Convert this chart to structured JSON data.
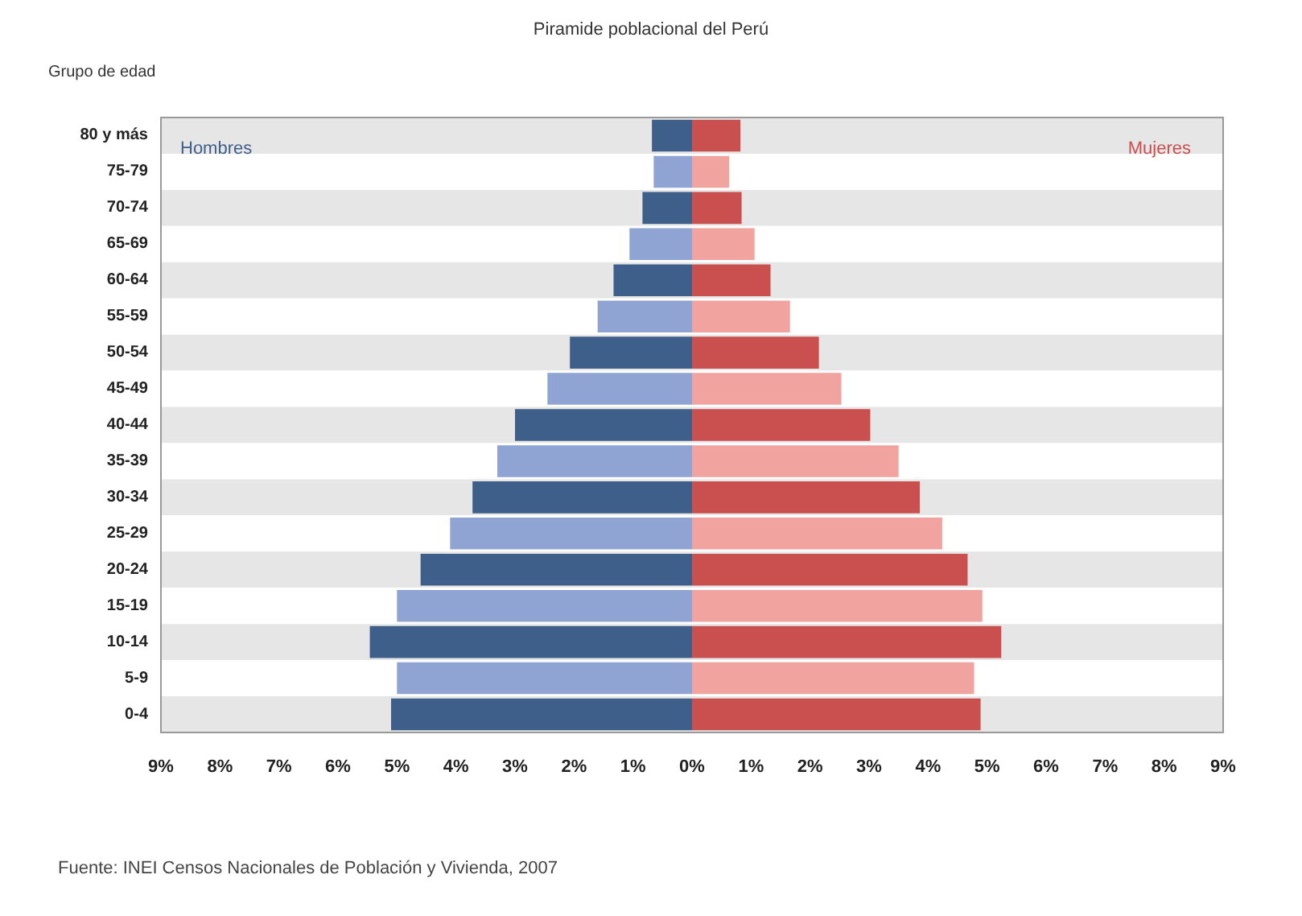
{
  "chart_data": {
    "type": "bar",
    "orientation": "horizontal",
    "stacked": true,
    "title": "Piramide poblacional del Perú",
    "ylabel": "Grupo de edad",
    "categories": [
      "80 y más",
      "75-79",
      "70-74",
      "65-69",
      "60-64",
      "55-59",
      "50-54",
      "45-49",
      "40-44",
      "35-39",
      "30-34",
      "25-29",
      "20-24",
      "15-19",
      "10-14",
      "5-9",
      "0-4"
    ],
    "series": [
      {
        "name": "Hombres",
        "values": [
          -0.68,
          -0.65,
          -0.84,
          -1.06,
          -1.33,
          -1.6,
          -2.07,
          -2.45,
          -3.0,
          -3.3,
          -3.72,
          -4.1,
          -4.6,
          -5.0,
          -5.46,
          -5.0,
          -5.1
        ],
        "colors": [
          "#3e5f8a",
          "#8fa4d3",
          "#3e5f8a",
          "#8fa4d3",
          "#3e5f8a",
          "#8fa4d3",
          "#3e5f8a",
          "#8fa4d3",
          "#3e5f8a",
          "#8fa4d3",
          "#3e5f8a",
          "#8fa4d3",
          "#3e5f8a",
          "#8fa4d3",
          "#3e5f8a",
          "#8fa4d3",
          "#3e5f8a"
        ]
      },
      {
        "name": "Mujeres",
        "values": [
          0.82,
          0.63,
          0.84,
          1.06,
          1.33,
          1.66,
          2.15,
          2.53,
          3.02,
          3.5,
          3.86,
          4.24,
          4.67,
          4.92,
          5.24,
          4.78,
          4.89
        ],
        "colors": [
          "#c9504f",
          "#f1a3a0",
          "#c9504f",
          "#f1a3a0",
          "#c9504f",
          "#f1a3a0",
          "#c9504f",
          "#f1a3a0",
          "#c9504f",
          "#f1a3a0",
          "#c9504f",
          "#f1a3a0",
          "#c9504f",
          "#f1a3a0",
          "#c9504f",
          "#f1a3a0",
          "#c9504f"
        ]
      }
    ],
    "xlim": [
      -9,
      9
    ],
    "xticks": [
      {
        "value": -9,
        "label": "9%"
      },
      {
        "value": -8,
        "label": "8%"
      },
      {
        "value": -7,
        "label": "7%"
      },
      {
        "value": -6,
        "label": "6%"
      },
      {
        "value": -5,
        "label": "5%"
      },
      {
        "value": -4,
        "label": "4%"
      },
      {
        "value": -3,
        "label": "3%"
      },
      {
        "value": -2,
        "label": "2%"
      },
      {
        "value": -1,
        "label": "1%"
      },
      {
        "value": 0,
        "label": "0%"
      },
      {
        "value": 1,
        "label": "1%"
      },
      {
        "value": 2,
        "label": "2%"
      },
      {
        "value": 3,
        "label": "3%"
      },
      {
        "value": 4,
        "label": "4%"
      },
      {
        "value": 5,
        "label": "5%"
      },
      {
        "value": 6,
        "label": "6%"
      },
      {
        "value": 7,
        "label": "7%"
      },
      {
        "value": 8,
        "label": "8%"
      },
      {
        "value": 9,
        "label": "9%"
      }
    ],
    "legend": false,
    "annotations": [
      "Fuente: INEI Censos Nacionales de Población y Vivienda, 2007"
    ]
  }
}
